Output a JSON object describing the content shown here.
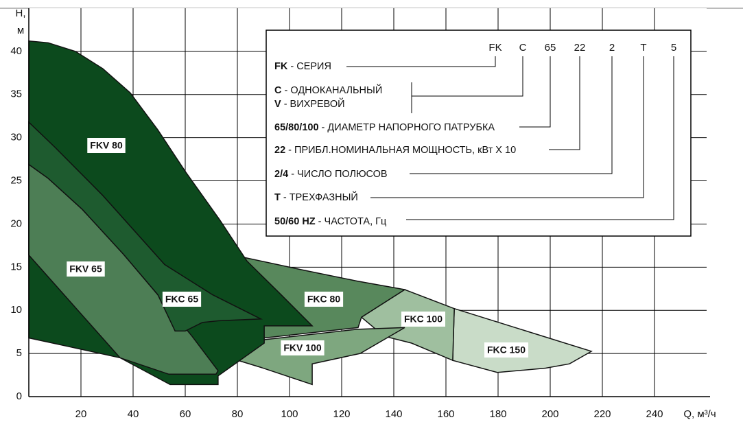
{
  "chart_data": {
    "type": "area",
    "y_label_line1": "H,",
    "y_label_line2": "м",
    "x_label": "Q, м³/ч",
    "xlim": [
      0,
      260
    ],
    "ylim": [
      0,
      45
    ],
    "xticks": [
      20,
      40,
      60,
      80,
      100,
      120,
      140,
      160,
      180,
      200,
      220,
      240
    ],
    "yticks": [
      0,
      5,
      10,
      15,
      20,
      25,
      30,
      35,
      40
    ],
    "grid": true,
    "series": [
      {
        "name": "FKC 150",
        "color": "#c9dcc8",
        "x": [
          163.2,
          215.8,
          207.4,
          198.2,
          179.7,
          162.6
        ],
        "y": [
          10.2,
          5.25,
          3.8,
          3.3,
          2.8,
          4.2
        ]
      },
      {
        "name": "FKC 100",
        "color": "#9fbf9f",
        "x": [
          127.6,
          144.2,
          163.2,
          162.6,
          146.8,
          136.3
        ],
        "y": [
          9.2,
          12.4,
          10.2,
          4.2,
          6.2,
          7.0
        ]
      },
      {
        "name": "FKV 100",
        "color": "#7ea77f",
        "x": [
          75.8,
          90.3,
          125.8,
          144.2,
          127.1,
          108.7,
          108.7,
          88.9
        ],
        "y": [
          4.6,
          6.6,
          7.8,
          8.0,
          5.0,
          3.8,
          1.4,
          3.4
        ]
      },
      {
        "name": "FKC 80",
        "color": "#58885c",
        "x": [
          78.4,
          104.7,
          125.8,
          144.2,
          127.6,
          126.3,
          90.3,
          78.4
        ],
        "y": [
          16.4,
          14.7,
          13.4,
          12.4,
          9.2,
          8.0,
          6.8,
          7.8
        ]
      },
      {
        "name": "FKV 80",
        "color": "#0c4a1d",
        "x": [
          0,
          7.4,
          17.9,
          28.4,
          38.9,
          49.5,
          60,
          73.2,
          83.7,
          96.8,
          108.7,
          90.3,
          90.3,
          72.6,
          72.6,
          54.2,
          35,
          15.3,
          0
        ],
        "y": [
          41.2,
          41,
          40,
          38,
          35.2,
          30.9,
          26.1,
          20.5,
          15.7,
          11.8,
          8.2,
          8.2,
          6.2,
          2.4,
          1.4,
          1.4,
          4.5,
          5.8,
          6.8
        ]
      },
      {
        "name": "FKV 65",
        "color": "#4d7e55",
        "x": [
          0,
          7.4,
          20.5,
          36.3,
          49.5,
          62.6,
          72.6,
          71.8,
          53.7,
          35,
          0
        ],
        "y": [
          26.9,
          25.3,
          21.7,
          16.5,
          11.8,
          7.0,
          3.0,
          2.6,
          2.6,
          4.5,
          16.4
        ]
      },
      {
        "name": "FKC 65",
        "color": "#1e5b2f",
        "x": [
          0,
          10,
          28.4,
          52.1,
          70.5,
          89,
          73.2,
          66.6,
          60,
          56.1,
          49.5,
          36.3,
          20.5,
          7.4,
          0
        ],
        "y": [
          31.8,
          28.9,
          23.3,
          15.3,
          11.8,
          9.0,
          8.8,
          8.6,
          7.6,
          7.6,
          11.8,
          16.5,
          21.7,
          25.3,
          26.9
        ]
      }
    ]
  },
  "designation": [
    "FK",
    "C",
    "65",
    "22",
    "2",
    "T",
    "5"
  ],
  "legend": [
    {
      "code": "FK",
      "text": " - СЕРИЯ"
    },
    {
      "code": "C",
      "text": " - ОДНОКАНАЛЬНЫЙ"
    },
    {
      "code": "V",
      "text": " - ВИХРЕВОЙ"
    },
    {
      "code": "65/80/100",
      "text": " - ДИАМЕТР НАПОРНОГО ПАТРУБКА"
    },
    {
      "code": "22",
      "text": " - ПРИБЛ.НОМИНАЛЬНАЯ МОЩНОСТЬ, кВт Х 10"
    },
    {
      "code": "2/4",
      "text": " - ЧИСЛО ПОЛЮСОВ"
    },
    {
      "code": "T",
      "text": " - ТРЕХФАЗНЫЙ"
    },
    {
      "code": "50/60 HZ",
      "text": " - ЧАСТОТА, Гц"
    }
  ]
}
